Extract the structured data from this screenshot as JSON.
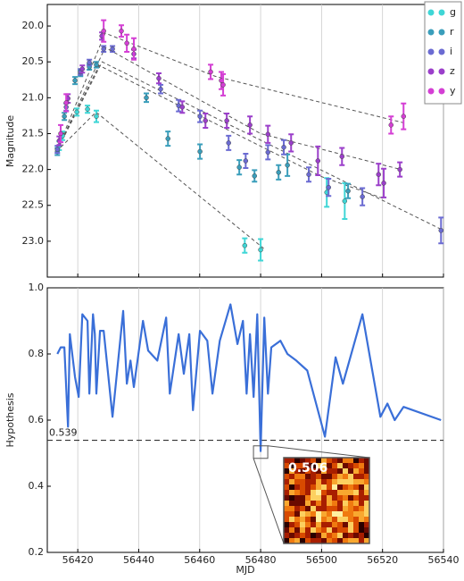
{
  "chart_data": [
    {
      "type": "errorbar",
      "ylabel": "Magnitude",
      "xlim": [
        56410,
        56540
      ],
      "xticks": [
        56420,
        56440,
        56460,
        56480,
        56500,
        56520,
        56540
      ],
      "ylim": [
        23.5,
        19.7
      ],
      "yticks": [
        {
          "value": 20,
          "label": "20.0"
        },
        20.5,
        {
          "value": 21,
          "label": "21.0"
        },
        21.5,
        {
          "value": 22,
          "label": "22.0"
        },
        22.5,
        {
          "value": 23,
          "label": "23.0"
        }
      ],
      "grid": "x",
      "legend": "upper right",
      "series": [
        {
          "name": "g",
          "color": "#3fd6d6",
          "x": [
            56413.9,
            56415.0,
            56419.7,
            56423.2,
            56426.1,
            56474.8,
            56480.0,
            56501.7,
            56507.6
          ],
          "values": [
            21.67,
            21.53,
            21.2,
            21.16,
            21.26,
            23.06,
            23.12,
            22.32,
            22.44
          ],
          "errors": [
            0.06,
            0.06,
            0.05,
            0.05,
            0.08,
            0.1,
            0.15,
            0.2,
            0.25
          ],
          "fit": {
            "x": [
              56413,
              56426,
              56481
            ],
            "values": [
              21.75,
              21.2,
              23.1
            ]
          }
        },
        {
          "name": "r",
          "color": "#3a9ebb",
          "x": [
            56413.3,
            56415.6,
            56419.1,
            56420.9,
            56423.8,
            56426.1,
            56442.5,
            56449.6,
            56460.1,
            56473.0,
            56478.0,
            56485.9,
            56488.8,
            56508.7
          ],
          "values": [
            21.75,
            21.26,
            20.76,
            20.66,
            20.57,
            20.54,
            21.0,
            21.57,
            21.75,
            21.97,
            22.09,
            22.04,
            21.94,
            22.3
          ],
          "errors": [
            0.05,
            0.05,
            0.05,
            0.04,
            0.04,
            0.04,
            0.06,
            0.1,
            0.1,
            0.1,
            0.08,
            0.1,
            0.15,
            0.1
          ],
          "fit": {
            "x": [
              56413,
              56427,
              56500,
              56520
            ],
            "values": [
              21.75,
              20.55,
              22.1,
              22.4
            ]
          }
        },
        {
          "name": "i",
          "color": "#6b6bd2",
          "x": [
            56413.3,
            56416.2,
            56420.9,
            56423.8,
            56428.5,
            56431.4,
            56447.2,
            56453.1,
            56460.1,
            56469.5,
            56475.1,
            56482.4,
            56487.6,
            56495.8,
            56502.3,
            56513.4,
            56539.2
          ],
          "values": [
            21.72,
            21.13,
            20.64,
            20.51,
            20.32,
            20.32,
            20.88,
            21.11,
            21.26,
            21.63,
            21.88,
            21.76,
            21.69,
            22.07,
            22.25,
            22.38,
            22.85
          ],
          "errors": [
            0.05,
            0.05,
            0.04,
            0.04,
            0.04,
            0.04,
            0.06,
            0.08,
            0.08,
            0.1,
            0.1,
            0.1,
            0.1,
            0.1,
            0.12,
            0.12,
            0.18
          ],
          "fit": {
            "x": [
              56413,
              56428,
              56540
            ],
            "values": [
              21.75,
              20.5,
              22.85
            ]
          }
        },
        {
          "name": "z",
          "color": "#9b3fca",
          "x": [
            56413.9,
            56416.8,
            56421.5,
            56427.9,
            56438.4,
            56446.6,
            56454.3,
            56461.9,
            56468.9,
            56476.5,
            56482.4,
            56490.0,
            56498.8,
            56506.7,
            56518.7,
            56520.4,
            56525.7
          ],
          "values": [
            21.6,
            21.01,
            20.6,
            20.14,
            20.39,
            20.73,
            21.13,
            21.32,
            21.32,
            21.38,
            21.51,
            21.63,
            21.88,
            21.82,
            22.07,
            22.19,
            22.0
          ],
          "errors": [
            0.06,
            0.06,
            0.05,
            0.05,
            0.06,
            0.07,
            0.08,
            0.1,
            0.1,
            0.12,
            0.12,
            0.12,
            0.2,
            0.12,
            0.15,
            0.2,
            0.1
          ],
          "fit": {
            "x": [
              56413,
              56429,
              56480,
              56526
            ],
            "values": [
              21.75,
              20.3,
              21.5,
              22.0
            ]
          }
        },
        {
          "name": "y",
          "color": "#d43fd4",
          "x": [
            56414.4,
            56416.2,
            56428.5,
            56434.3,
            56436.1,
            56438.4,
            56463.6,
            56467.1,
            56467.7,
            56522.8,
            56526.9
          ],
          "values": [
            21.5,
            21.07,
            20.07,
            20.07,
            20.24,
            20.32,
            20.64,
            20.76,
            20.82,
            21.38,
            21.26
          ],
          "errors": [
            0.12,
            0.12,
            0.15,
            0.08,
            0.12,
            0.15,
            0.1,
            0.12,
            0.15,
            0.12,
            0.18
          ],
          "fit": {
            "x": [
              56413,
              56429,
              56465,
              56527
            ],
            "values": [
              21.75,
              20.1,
              20.7,
              21.35
            ]
          }
        }
      ]
    },
    {
      "type": "line",
      "xlabel": "MJD",
      "ylabel": "Hypothesis",
      "color": "#3a6fd8",
      "xlim": [
        56410,
        56540
      ],
      "xticks": [
        56420,
        56440,
        56460,
        56480,
        56500,
        56520,
        56540
      ],
      "ylim": [
        0.2,
        1.0
      ],
      "yticks": [
        0.2,
        0.4,
        0.6,
        0.8,
        {
          "value": 1,
          "label": "1.0"
        }
      ],
      "grid": "x",
      "threshold": {
        "value": 0.539,
        "label": "0.539"
      },
      "inset_label": "0.506",
      "x": [
        56413.3,
        56414.4,
        56415.6,
        56416.8,
        56417.4,
        56419.1,
        56420.3,
        56421.5,
        56423.2,
        56423.8,
        56425.0,
        56425.6,
        56426.1,
        56427.3,
        56428.5,
        56431.4,
        56434.9,
        56436.1,
        56437.3,
        56438.4,
        56441.4,
        56443.1,
        56446.1,
        56449.0,
        56450.2,
        56453.1,
        56454.8,
        56456.6,
        56457.8,
        56460.1,
        56462.5,
        56464.2,
        56466.6,
        56470.1,
        56472.4,
        56474.2,
        56475.4,
        56476.5,
        56477.7,
        56478.9,
        56480.0,
        56481.2,
        56482.4,
        56483.5,
        56486.5,
        56488.8,
        56491.7,
        56495.3,
        56501.1,
        56504.6,
        56507.0,
        56513.4,
        56519.3,
        56521.6,
        56524.0,
        56526.9,
        56539.2
      ],
      "values": [
        0.8,
        0.82,
        0.82,
        0.58,
        0.86,
        0.73,
        0.67,
        0.92,
        0.9,
        0.68,
        0.92,
        0.86,
        0.68,
        0.87,
        0.87,
        0.61,
        0.93,
        0.71,
        0.78,
        0.7,
        0.9,
        0.81,
        0.78,
        0.91,
        0.68,
        0.86,
        0.74,
        0.86,
        0.63,
        0.87,
        0.84,
        0.68,
        0.84,
        0.95,
        0.83,
        0.9,
        0.68,
        0.86,
        0.67,
        0.92,
        0.506,
        0.91,
        0.68,
        0.82,
        0.84,
        0.8,
        0.78,
        0.75,
        0.55,
        0.79,
        0.71,
        0.92,
        0.61,
        0.65,
        0.6,
        0.64,
        0.6
      ]
    }
  ]
}
